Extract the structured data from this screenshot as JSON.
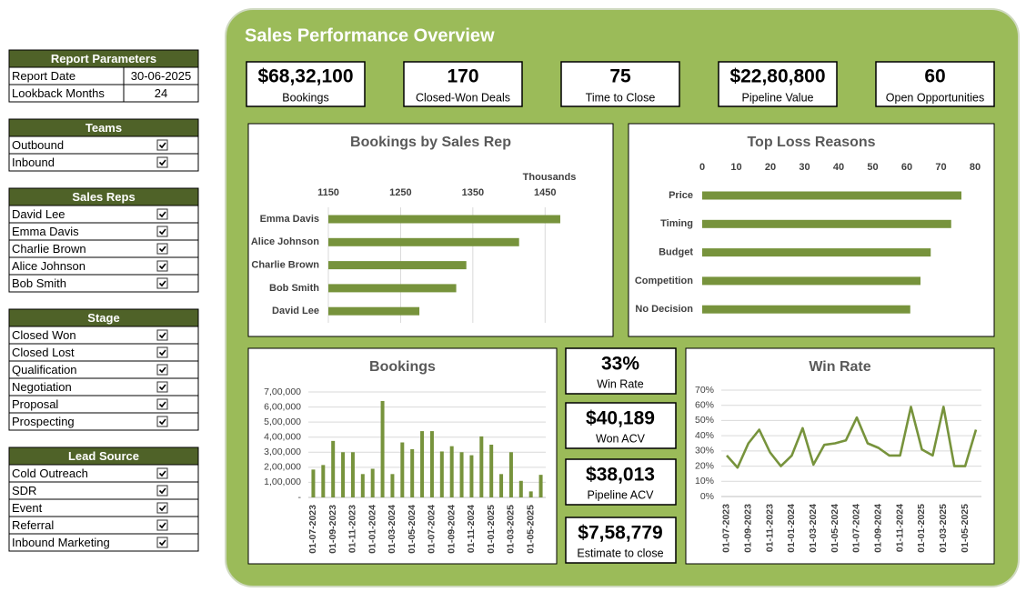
{
  "report_parameters": {
    "title": "Report Parameters",
    "rows": [
      [
        "Report Date",
        "30-06-2025"
      ],
      [
        "Lookback Months",
        24
      ]
    ]
  },
  "filters": [
    {
      "title": "Teams",
      "items": [
        "Outbound",
        "Inbound"
      ]
    },
    {
      "title": "Sales Reps",
      "items": [
        "David Lee",
        "Emma Davis",
        "Charlie Brown",
        "Alice Johnson",
        "Bob Smith"
      ]
    },
    {
      "title": "Stage",
      "items": [
        "Closed Won",
        "Closed Lost",
        "Qualification",
        "Negotiation",
        "Proposal",
        "Prospecting"
      ]
    },
    {
      "title": "Lead Source",
      "items": [
        "Cold Outreach",
        "SDR",
        "Event",
        "Referral",
        "Inbound Marketing"
      ]
    }
  ],
  "dashboard": {
    "title": "Sales Performance Overview",
    "kpis": [
      {
        "value": "$68,32,100",
        "label": "Bookings"
      },
      {
        "value": "170",
        "label": "Closed-Won Deals"
      },
      {
        "value": "75",
        "label": "Time to Close"
      },
      {
        "value": "$22,80,800",
        "label": "Pipeline Value"
      },
      {
        "value": "60",
        "label": "Open Opportunities"
      }
    ],
    "side_kpis": [
      {
        "value": "33%",
        "label": "Win Rate"
      },
      {
        "value": "$40,189",
        "label": "Won ACV"
      },
      {
        "value": "$38,013",
        "label": "Pipeline ACV"
      },
      {
        "value": "$7,58,779",
        "label": "Estimate to close"
      }
    ]
  },
  "chart_data": [
    {
      "type": "hbar",
      "title": "Bookings by Sales Rep",
      "axis_label": "Thousands",
      "categories": [
        "Emma Davis",
        "Alice Johnson",
        "Charlie Brown",
        "Bob Smith",
        "David Lee"
      ],
      "values": [
        1471,
        1414,
        1341,
        1327,
        1276
      ],
      "color": "#77933c",
      "xlim": [
        1150,
        1500
      ],
      "xticks": [
        1150,
        1250,
        1350,
        1450
      ],
      "grid": true
    },
    {
      "type": "hbar",
      "title": "Top Loss Reasons",
      "categories": [
        "Price",
        "Timing",
        "Budget",
        "Competition",
        "No Decision"
      ],
      "values": [
        76,
        73,
        67,
        64,
        61
      ],
      "color": "#77933c",
      "xlim": [
        0,
        80
      ],
      "xticks": [
        0,
        10,
        20,
        30,
        40,
        50,
        60,
        70,
        80
      ],
      "grid": false
    },
    {
      "type": "bar",
      "title": "Bookings",
      "categories": [
        "01-07-2023",
        null,
        "01-09-2023",
        null,
        "01-11-2023",
        null,
        "01-01-2024",
        null,
        "01-03-2024",
        null,
        "01-05-2024",
        null,
        "01-07-2024",
        null,
        "01-09-2024",
        null,
        "01-11-2024",
        null,
        "01-01-2025",
        null,
        "01-03-2025",
        null,
        "01-05-2025",
        null
      ],
      "values": [
        185000,
        215000,
        375000,
        300000,
        300000,
        155000,
        190000,
        640000,
        155000,
        365000,
        320000,
        440000,
        440000,
        305000,
        340000,
        300000,
        280000,
        405000,
        350000,
        155000,
        300000,
        110000,
        40000,
        150000
      ],
      "color": "#77933c",
      "ylim": [
        0,
        700000
      ],
      "yticks": [
        {
          "value": 0,
          "label": "-"
        },
        {
          "value": 100000,
          "label": "1,00,000"
        },
        {
          "value": 200000,
          "label": "2,00,000"
        },
        {
          "value": 300000,
          "label": "3,00,000"
        },
        {
          "value": 400000,
          "label": "4,00,000"
        },
        {
          "value": 500000,
          "label": "5,00,000"
        },
        {
          "value": 600000,
          "label": "6,00,000"
        },
        {
          "value": 700000,
          "label": "7,00,000"
        }
      ],
      "grid": true
    },
    {
      "type": "line",
      "title": "Win Rate",
      "categories": [
        "01-07-2023",
        null,
        "01-09-2023",
        null,
        "01-11-2023",
        null,
        "01-01-2024",
        null,
        "01-03-2024",
        null,
        "01-05-2024",
        null,
        "01-07-2024",
        null,
        "01-09-2024",
        null,
        "01-11-2024",
        null,
        "01-01-2025",
        null,
        "01-03-2025",
        null,
        "01-05-2025",
        null
      ],
      "values": [
        27,
        19,
        35,
        44,
        29,
        20,
        27,
        45,
        21,
        34,
        35,
        37,
        52,
        35,
        32,
        27,
        27,
        59,
        31,
        27,
        59,
        20,
        20,
        44
      ],
      "color": "#77933c",
      "ylim": [
        0,
        70
      ],
      "yticks": [
        {
          "value": 0,
          "label": "0%"
        },
        {
          "value": 10,
          "label": "10%"
        },
        {
          "value": 20,
          "label": "20%"
        },
        {
          "value": 30,
          "label": "30%"
        },
        {
          "value": 40,
          "label": "40%"
        },
        {
          "value": 50,
          "label": "50%"
        },
        {
          "value": 60,
          "label": "60%"
        },
        {
          "value": 70,
          "label": "70%"
        }
      ],
      "grid": true
    }
  ]
}
